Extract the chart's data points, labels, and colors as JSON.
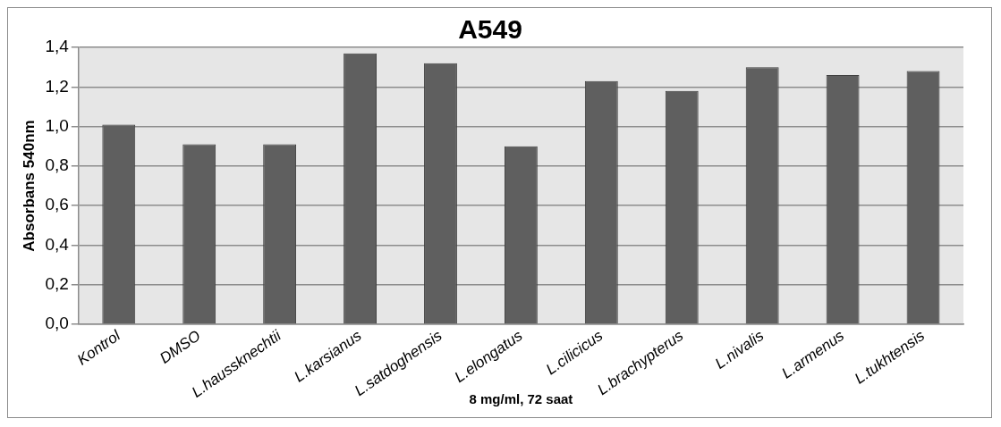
{
  "chart_data": {
    "type": "bar",
    "title": "A549",
    "xlabel": "8 mg/ml, 72 saat",
    "ylabel": "Absorbans 540nm",
    "categories": [
      "Kontrol",
      "DMSO",
      "L.haussknechtii",
      "L.karsianus",
      "L.satdoghensis",
      "L.elongatus",
      "L.cilicicus",
      "L.brachypterus",
      "L.nivalis",
      "L.armenus",
      "L.tukhtensis"
    ],
    "values": [
      1.01,
      0.91,
      0.91,
      1.37,
      1.32,
      0.9,
      1.23,
      1.18,
      1.3,
      1.26,
      1.28
    ],
    "color": "#5f5f5f",
    "ylim": [
      0,
      1.4
    ],
    "yticks": [
      {
        "value": 0,
        "label": "0,0"
      },
      {
        "value": 0.2,
        "label": "0,2"
      },
      {
        "value": 0.4,
        "label": "0,4"
      },
      {
        "value": 0.6,
        "label": "0,6"
      },
      {
        "value": 0.8,
        "label": "0,8"
      },
      {
        "value": 1.0,
        "label": "1,0"
      },
      {
        "value": 1.2,
        "label": "1,2"
      },
      {
        "value": 1.4,
        "label": "1,4"
      }
    ],
    "grid": "y",
    "legend": false
  }
}
